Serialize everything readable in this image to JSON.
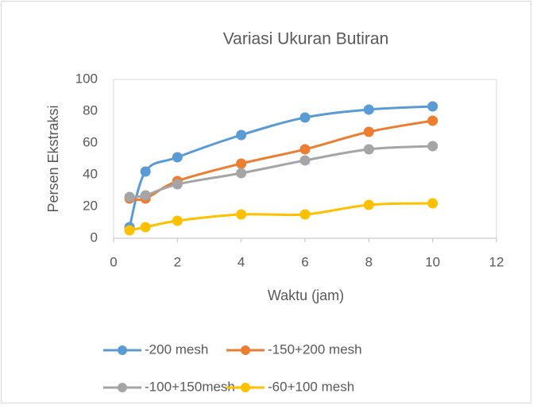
{
  "chart_data": {
    "type": "line",
    "title": "Variasi Ukuran Butiran",
    "x_label": "Waktu (jam)",
    "y_label": "Persen Ekstraksi",
    "x": [
      0.5,
      1,
      2,
      4,
      6,
      8,
      10
    ],
    "series": [
      {
        "name": "-200 mesh",
        "color": "#5b9bd5",
        "values": [
          7,
          42,
          51,
          65,
          76,
          81,
          83
        ]
      },
      {
        "name": "-150+200 mesh",
        "color": "#ed7d31",
        "values": [
          25,
          25,
          36,
          47,
          56,
          67,
          74
        ]
      },
      {
        "name": "-100+150mesh",
        "color": "#a5a5a5",
        "values": [
          26,
          27,
          34,
          41,
          49,
          56,
          58
        ]
      },
      {
        "name": "-60+100 mesh",
        "color": "#ffc000",
        "values": [
          5,
          7,
          11,
          15,
          15,
          21,
          22
        ]
      }
    ],
    "xlim": [
      0,
      12
    ],
    "xticks": [
      0,
      2,
      4,
      6,
      8,
      10,
      12
    ],
    "ylim": [
      0,
      100
    ],
    "yticks": [
      0,
      20,
      40,
      60,
      80,
      100
    ],
    "grid": false,
    "smooth": true,
    "legend": "bottom"
  }
}
